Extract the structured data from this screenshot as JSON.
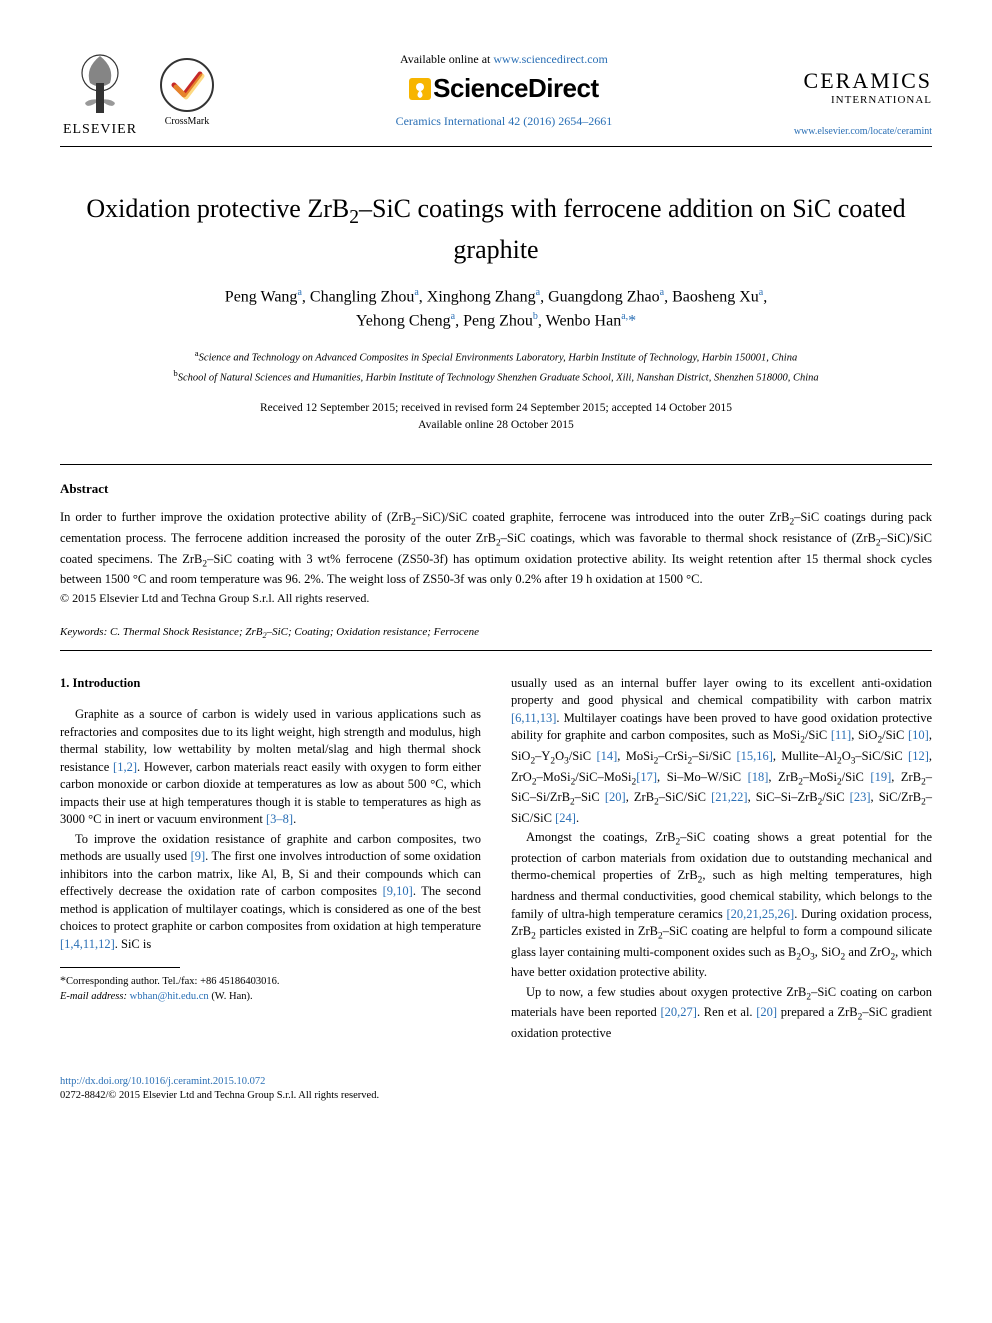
{
  "header": {
    "elsevier_label": "ELSEVIER",
    "crossmark_label": "CrossMark",
    "available_prefix": "Available online at ",
    "available_url": "www.sciencedirect.com",
    "sciencedirect_label": "ScienceDirect",
    "journal_ref": "Ceramics International 42 (2016) 2654–2661",
    "ceramics_title": "CERAMICS",
    "ceramics_sub": "INTERNATIONAL",
    "journal_url": "www.elsevier.com/locate/ceramint"
  },
  "article": {
    "title_html": "Oxidation protective ZrB<sub>2</sub>–SiC coatings with ferrocene addition on SiC coated graphite",
    "authors_html": "Peng Wang<sup>a</sup>, Changling Zhou<sup>a</sup>, Xinghong Zhang<sup>a</sup>, Guangdong Zhao<sup>a</sup>, Baosheng Xu<sup>a</sup>,<br>Yehong Cheng<sup>a</sup>, Peng Zhou<sup>b</sup>, Wenbo Han<sup>a,</sup><span class=\"star\">*</span>",
    "affiliations_html": "<sup>a</sup>Science and Technology on Advanced Composites in Special Environments Laboratory, Harbin Institute of Technology, Harbin 150001, China<br><sup>b</sup>School of Natural Sciences and Humanities, Harbin Institute of Technology Shenzhen Graduate School, Xili, Nanshan District, Shenzhen 518000, China",
    "dates_html": "Received 12 September 2015; received in revised form 24 September 2015; accepted 14 October 2015<br>Available online 28 October 2015"
  },
  "abstract": {
    "heading": "Abstract",
    "text_html": "In order to further improve the oxidation protective ability of (ZrB<sub>2</sub>–SiC)/SiC coated graphite, ferrocene was introduced into the outer ZrB<sub>2</sub>–SiC coatings during pack cementation process. The ferrocene addition increased the porosity of the outer ZrB<sub>2</sub>–SiC coatings, which was favorable to thermal shock resistance of (ZrB<sub>2</sub>–SiC)/SiC coated specimens. The ZrB<sub>2</sub>–SiC coating with 3 wt% ferrocene (ZS50-3f) has optimum oxidation protective ability. Its weight retention after 15 thermal shock cycles between 1500 °C and room temperature was 96. 2%. The weight loss of ZS50-3f was only 0.2% after 19 h oxidation at 1500 °C.",
    "copyright": "© 2015 Elsevier Ltd and Techna Group S.r.l. All rights reserved."
  },
  "keywords": {
    "label": "Keywords:",
    "text_html": "C. Thermal Shock Resistance; ZrB<sub>2</sub>–SiC; Coating; Oxidation resistance; Ferrocene"
  },
  "body": {
    "section_heading": "1. Introduction",
    "col1_p1_html": "Graphite as a source of carbon is widely used in various applications such as refractories and composites due to its light weight, high strength and modulus, high thermal stability, low wettability by molten metal/slag and high thermal shock resistance <span class=\"ref\">[1,2]</span>. However, carbon materials react easily with oxygen to form either carbon monoxide or carbon dioxide at temperatures as low as about 500 °C, which impacts their use at high temperatures though it is stable to temperatures as high as 3000 °C in inert or vacuum environment <span class=\"ref\">[3–8]</span>.",
    "col1_p2_html": "To improve the oxidation resistance of graphite and carbon composites, two methods are usually used <span class=\"ref\">[9]</span>. The first one involves introduction of some oxidation inhibitors into the carbon matrix, like Al, B, Si and their compounds which can effectively decrease the oxidation rate of carbon composites <span class=\"ref\">[9,10]</span>. The second method is application of multilayer coatings, which is considered as one of the best choices to protect graphite or carbon composites from oxidation at high temperature <span class=\"ref\">[1,4,11,12]</span>. SiC is",
    "col2_p1_html": "usually used as an internal buffer layer owing to its excellent anti-oxidation property and good physical and chemical compatibility with carbon matrix <span class=\"ref\">[6,11,13]</span>. Multilayer coatings have been proved to have good oxidation protective ability for graphite and carbon composites, such as MoSi<sub>2</sub>/SiC <span class=\"ref\">[11]</span>, SiO<sub>2</sub>/SiC <span class=\"ref\">[10]</span>, SiO<sub>2</sub>–Y<sub>2</sub>O<sub>3</sub>/SiC <span class=\"ref\">[14]</span>, MoSi<sub>2</sub>–CrSi<sub>2</sub>–Si/SiC <span class=\"ref\">[15,16]</span>, Mullite–Al<sub>2</sub>O<sub>3</sub>–SiC/SiC <span class=\"ref\">[12]</span>, ZrO<sub>2</sub>–MoSi<sub>2</sub>/SiC–MoSi<sub>2</sub><span class=\"ref\">[17]</span>, Si–Mo–W/SiC <span class=\"ref\">[18]</span>, ZrB<sub>2</sub>–MoSi<sub>2</sub>/SiC <span class=\"ref\">[19]</span>, ZrB<sub>2</sub>–SiC–Si/ZrB<sub>2</sub>–SiC <span class=\"ref\">[20]</span>, ZrB<sub>2</sub>–SiC/SiC <span class=\"ref\">[21,22]</span>, SiC–Si–ZrB<sub>2</sub>/SiC <span class=\"ref\">[23]</span>, SiC/ZrB<sub>2</sub>–SiC/SiC <span class=\"ref\">[24]</span>.",
    "col2_p2_html": "Amongst the coatings, ZrB<sub>2</sub>–SiC coating shows a great potential for the protection of carbon materials from oxidation due to outstanding mechanical and thermo-chemical properties of ZrB<sub>2</sub>, such as high melting temperatures, high hardness and thermal conductivities, good chemical stability, which belongs to the family of ultra-high temperature ceramics <span class=\"ref\">[20,21,25,26]</span>. During oxidation process, ZrB<sub>2</sub> particles existed in ZrB<sub>2</sub>–SiC coating are helpful to form a compound silicate glass layer containing multi-component oxides such as B<sub>2</sub>O<sub>3</sub>, SiO<sub>2</sub> and ZrO<sub>2</sub>, which have better oxidation protective ability.",
    "col2_p3_html": "Up to now, a few studies about oxygen protective ZrB<sub>2</sub>–SiC coating on carbon materials have been reported <span class=\"ref\">[20,27]</span>. Ren et al. <span class=\"ref\">[20]</span> prepared a ZrB<sub>2</sub>–SiC gradient oxidation protective"
  },
  "footnote": {
    "corr_html": "<span class=\"star\">*</span>Corresponding author. Tel./fax: +86 45186403016.",
    "email_label": "E-mail address:",
    "email": "wbhan@hit.edu.cn",
    "email_suffix": " (W. Han)."
  },
  "footer": {
    "doi": "http://dx.doi.org/10.1016/j.ceramint.2015.10.072",
    "issn_line": "0272-8842/© 2015 Elsevier Ltd and Techna Group S.r.l. All rights reserved."
  },
  "colors": {
    "link": "#2a6fb5",
    "text": "#000000",
    "bg": "#ffffff",
    "star": "#f7b500"
  },
  "typography": {
    "title_fontsize": 26,
    "body_fontsize": 12.5,
    "abstract_fontsize": 12.5,
    "footnote_fontsize": 10.5
  }
}
